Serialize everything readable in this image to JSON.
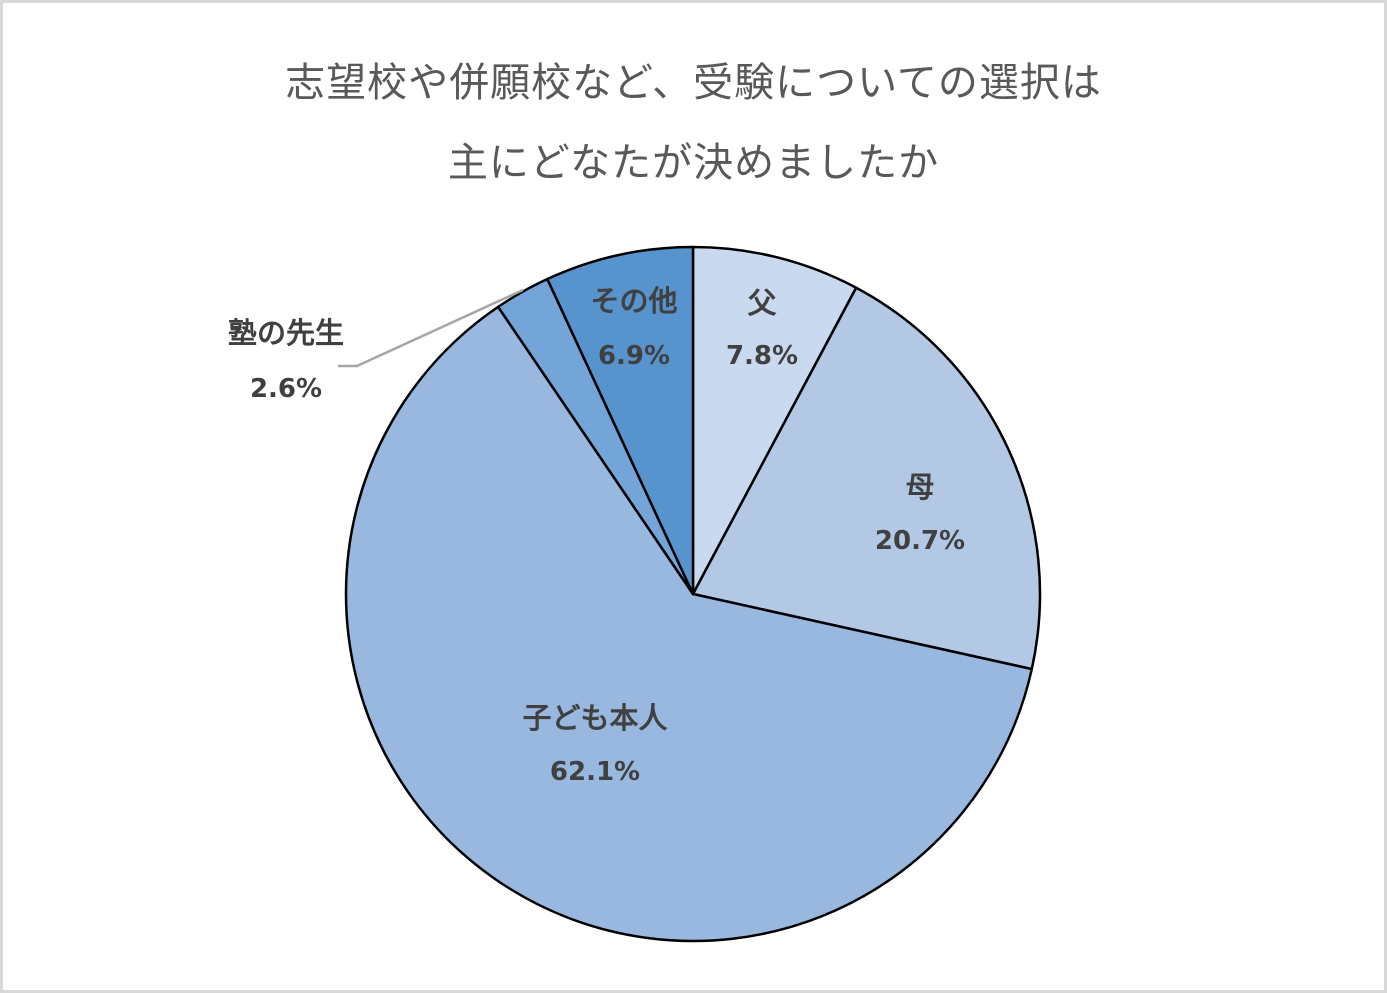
{
  "chart_data": {
    "type": "pie",
    "title": "志望校や併願校など、受験についての選択は主にどなたが決めましたか",
    "title_lines": [
      "志望校や併願校など、受験についての選択は",
      "主にどなたが決めましたか"
    ],
    "start_angle": "12 o'clock",
    "direction": "clockwise",
    "categories": [
      "父",
      "母",
      "子ども本人",
      "塾の先生",
      "その他"
    ],
    "values": [
      7.8,
      20.7,
      62.1,
      2.6,
      6.9
    ],
    "unit": "%",
    "slices": [
      {
        "label": "父",
        "value": 7.8,
        "value_label": "7.8%",
        "color": "#c9d9ef"
      },
      {
        "label": "母",
        "value": 20.7,
        "value_label": "20.7%",
        "color": "#b3c8e4"
      },
      {
        "label": "子ども本人",
        "value": 62.1,
        "value_label": "62.1%",
        "color": "#98b8df"
      },
      {
        "label": "塾の先生",
        "value": 2.6,
        "value_label": "2.6%",
        "color": "#74a5d8",
        "leader_line": true
      },
      {
        "label": "その他",
        "value": 6.9,
        "value_label": "6.9%",
        "color": "#5794ce"
      }
    ],
    "legend": "none",
    "data_labels": "category name and percentage inside/adjacent to slices",
    "slice_border_color": "#000000",
    "label_color": "#404040",
    "title_color": "#595959",
    "frame_border_color": "#d9d9d9"
  }
}
